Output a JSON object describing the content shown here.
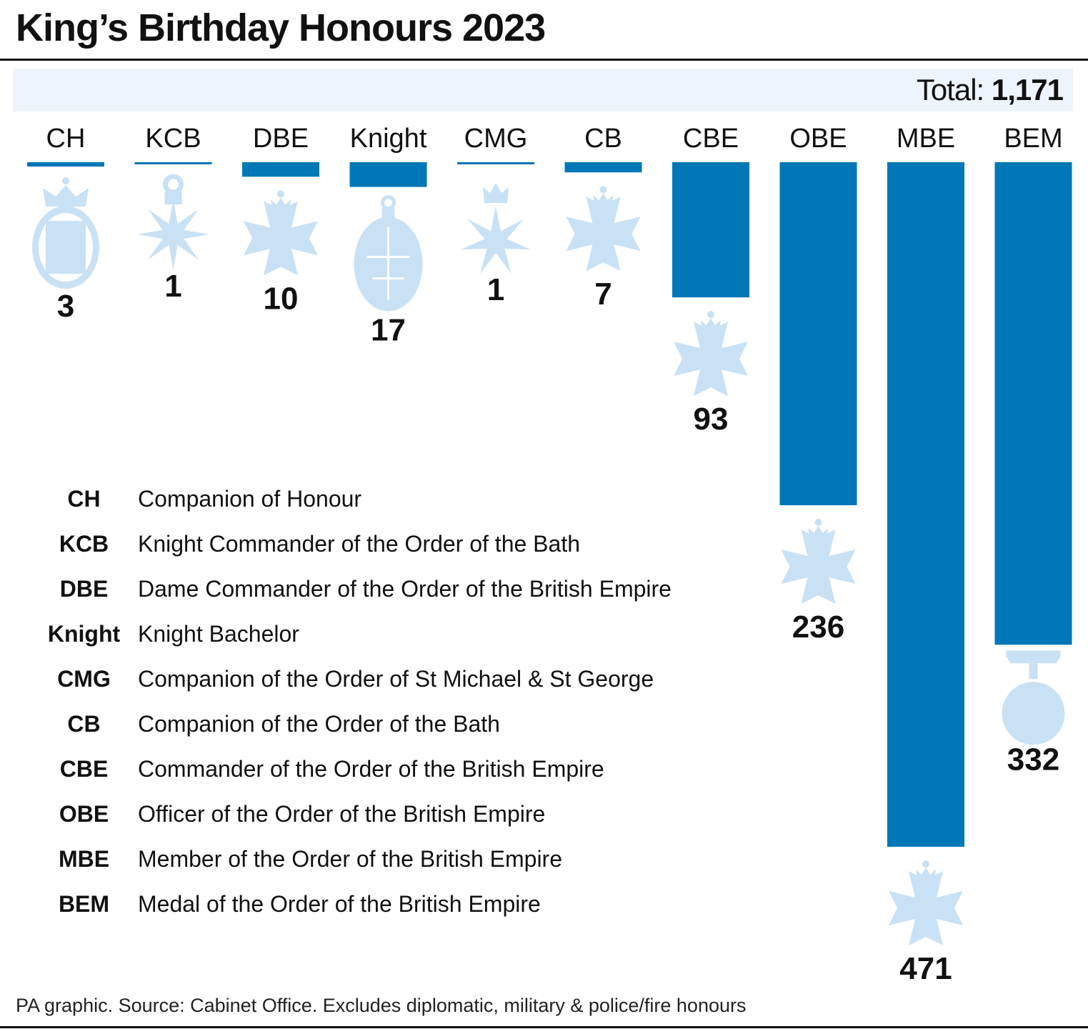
{
  "title": "King’s Birthday Honours 2023",
  "total": {
    "label": "Total:",
    "value": "1,171"
  },
  "footer": "PA graphic. Source: Cabinet Office. Excludes diplomatic, military & police/fire honours",
  "colors": {
    "bar": "#0077b6",
    "medal": "#c9e1f4",
    "band": "#eef4fb"
  },
  "chart_data": {
    "type": "bar",
    "categories": [
      "CH",
      "KCB",
      "DBE",
      "Knight",
      "CMG",
      "CB",
      "CBE",
      "OBE",
      "MBE",
      "BEM"
    ],
    "values": [
      3,
      1,
      10,
      17,
      1,
      7,
      93,
      236,
      471,
      332
    ],
    "value_labels": [
      "3",
      "1",
      "10",
      "17",
      "1",
      "7",
      "93",
      "236",
      "471",
      "332"
    ],
    "icons": [
      "ch-badge-icon",
      "kcb-star-icon",
      "cross-patonce-icon",
      "knight-oval-badge-icon",
      "cmg-star-icon",
      "cross-patonce-icon",
      "cross-patonce-icon",
      "cross-patonce-icon",
      "cross-patonce-icon",
      "round-medal-icon"
    ],
    "orientation": "vertical-downward",
    "grid": false
  },
  "legend": [
    {
      "abbr": "CH",
      "desc": "Companion of Honour"
    },
    {
      "abbr": "KCB",
      "desc": "Knight Commander of the Order of the Bath"
    },
    {
      "abbr": "DBE",
      "desc": "Dame Commander of the Order of the British Empire"
    },
    {
      "abbr": "Knight",
      "desc": "Knight Bachelor"
    },
    {
      "abbr": "CMG",
      "desc": "Companion of the Order of St Michael & St George"
    },
    {
      "abbr": "CB",
      "desc": "Companion of the Order of the Bath"
    },
    {
      "abbr": "CBE",
      "desc": "Commander of the Order of the British Empire"
    },
    {
      "abbr": "OBE",
      "desc": "Officer of the Order of the British Empire"
    },
    {
      "abbr": "MBE",
      "desc": "Member of the Order of the British Empire"
    },
    {
      "abbr": "BEM",
      "desc": "Medal of the Order of the British Empire"
    }
  ]
}
